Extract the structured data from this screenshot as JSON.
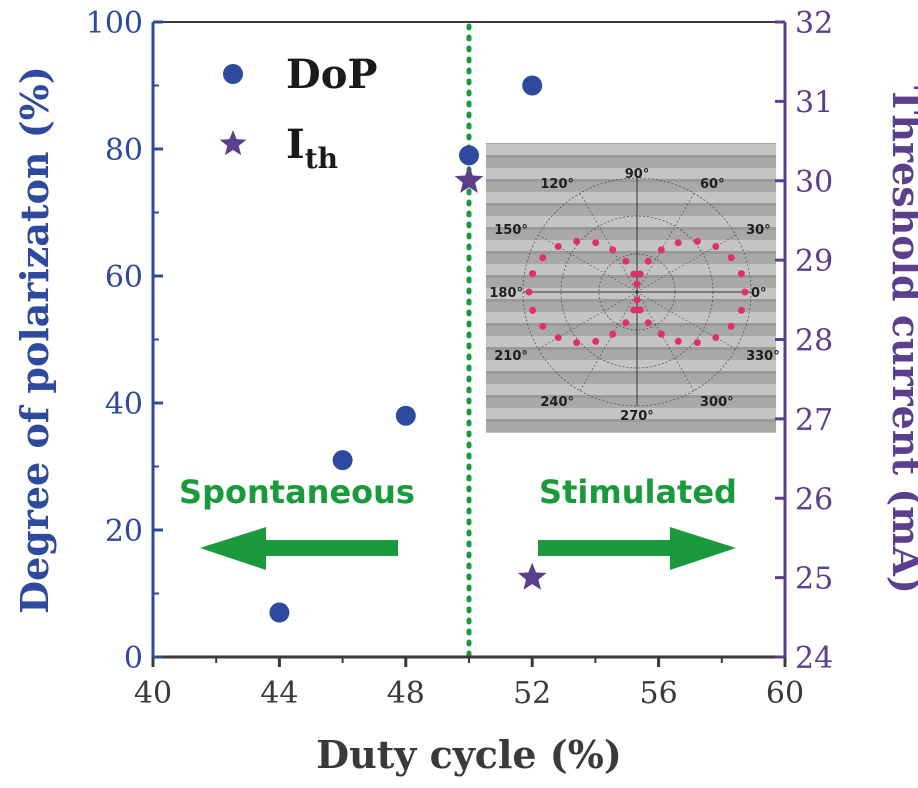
{
  "chart_data": {
    "type": "scatter",
    "xlabel": "Duty cycle (%)",
    "ylabel_left": "Degree of polarizaton (%)",
    "ylabel_right": "Threshold current (mA)",
    "xlim": [
      40,
      60
    ],
    "ylim_left": [
      0,
      100
    ],
    "ylim_right": [
      24,
      32
    ],
    "x_ticks": [
      "40",
      "44",
      "48",
      "52",
      "56",
      "60"
    ],
    "y_left_ticks": [
      "0",
      "20",
      "40",
      "60",
      "80",
      "100"
    ],
    "y_right_ticks": [
      "24",
      "25",
      "26",
      "27",
      "28",
      "29",
      "30",
      "31",
      "32"
    ],
    "grid": false,
    "legend_position": "top-left",
    "colors": {
      "dop": "#2e4a9e",
      "ith": "#5b3e8c",
      "annotation": "#1a9a3a",
      "polar_points": "#e0306a"
    },
    "series": [
      {
        "name": "DoP",
        "axis": "left",
        "marker": "circle",
        "x": [
          44,
          46,
          48,
          50,
          52
        ],
        "y": [
          7,
          31,
          38,
          79,
          90
        ]
      },
      {
        "name": "I",
        "name_subscript": "th",
        "axis": "right",
        "marker": "star",
        "x": [
          50,
          52
        ],
        "y": [
          30,
          25
        ]
      }
    ],
    "threshold_line": {
      "x": 50,
      "style": "dotted",
      "color": "#1a9a3a"
    },
    "annotations": {
      "left": "Spontaneous",
      "right": "Stimulated"
    },
    "inset": {
      "type": "polar",
      "angle_labels": [
        "0°",
        "30°",
        "60°",
        "90°",
        "120°",
        "150°",
        "180°",
        "210°",
        "240°",
        "270°",
        "300°",
        "330°"
      ],
      "pattern": "two-lobe, horizontal"
    }
  }
}
